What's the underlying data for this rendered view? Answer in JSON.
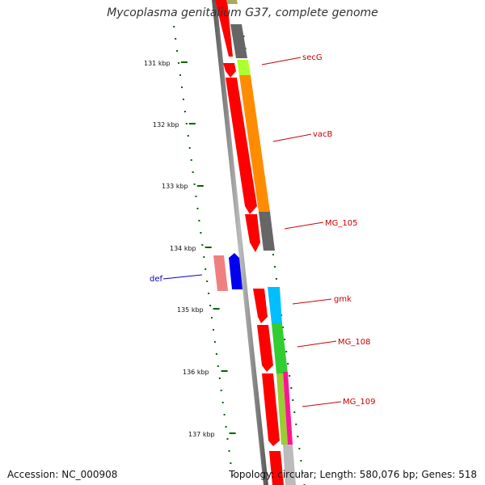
{
  "title": "Mycoplasma genitalium G37, complete genome",
  "footer": {
    "accession": "Accession: NC_000908",
    "summary": "Topology: circular; Length: 580,076 bp; Genes: 518"
  },
  "scale_labels": [
    "131 kbp",
    "132 kbp",
    "133 kbp",
    "134 kbp",
    "135 kbp",
    "136 kbp",
    "137 kbp"
  ],
  "gene_labels": [
    {
      "name": "secG",
      "color": "#cc0000"
    },
    {
      "name": "vacB",
      "color": "#cc0000"
    },
    {
      "name": "MG_105",
      "color": "#cc0000"
    },
    {
      "name": "def",
      "color": "#0000cc"
    },
    {
      "name": "gmk",
      "color": "#cc0000"
    },
    {
      "name": "MG_108",
      "color": "#cc0000"
    },
    {
      "name": "MG_109",
      "color": "#cc0000"
    }
  ],
  "colors": {
    "backbone": "#7a7a7a",
    "cds_forward": "#ff0000",
    "cds_reverse_light": "#f08080",
    "cds_blue": "#0000ee",
    "cog_gray": "#666666",
    "cog_orange": "#ff8c00",
    "cog_lime": "#adff2f",
    "cog_cyan": "#00bfff",
    "cog_green": "#32cd32",
    "cog_olive": "#a8a860",
    "tick_green": "#006400"
  }
}
